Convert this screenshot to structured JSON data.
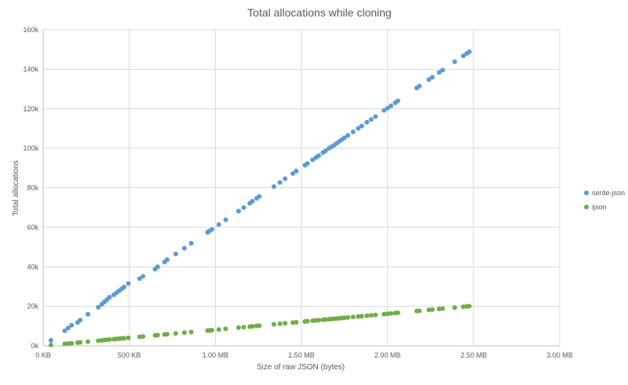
{
  "chart_data": {
    "type": "scatter",
    "title": "Total allocations while cloning",
    "xlabel": "Size of raw JSON (bytes)",
    "ylabel": "Total allocations",
    "xlim": [
      0,
      3000000
    ],
    "ylim": [
      0,
      160000
    ],
    "x_ticks": [
      {
        "value": 0,
        "label": "0 KB"
      },
      {
        "value": 500000,
        "label": "500 KB"
      },
      {
        "value": 1000000,
        "label": "1.00 MB"
      },
      {
        "value": 1500000,
        "label": "1.50 MB"
      },
      {
        "value": 2000000,
        "label": "2.00 MB"
      },
      {
        "value": 2500000,
        "label": "2.50 MB"
      },
      {
        "value": 3000000,
        "label": "3.00 MB"
      }
    ],
    "y_ticks": [
      {
        "value": 0,
        "label": "0k"
      },
      {
        "value": 20000,
        "label": "20k"
      },
      {
        "value": 40000,
        "label": "40k"
      },
      {
        "value": 60000,
        "label": "60k"
      },
      {
        "value": 80000,
        "label": "80k"
      },
      {
        "value": 100000,
        "label": "100k"
      },
      {
        "value": 120000,
        "label": "120k"
      },
      {
        "value": 140000,
        "label": "140k"
      },
      {
        "value": 160000,
        "label": "160k"
      }
    ],
    "grid": true,
    "legend_position": "right",
    "x": [
      45000,
      125000,
      145000,
      165000,
      200000,
      215000,
      260000,
      320000,
      340000,
      355000,
      370000,
      385000,
      410000,
      425000,
      440000,
      455000,
      470000,
      495000,
      560000,
      580000,
      650000,
      665000,
      705000,
      720000,
      770000,
      820000,
      860000,
      955000,
      965000,
      980000,
      1020000,
      1060000,
      1135000,
      1165000,
      1200000,
      1215000,
      1240000,
      1255000,
      1340000,
      1375000,
      1405000,
      1450000,
      1470000,
      1520000,
      1535000,
      1565000,
      1585000,
      1600000,
      1625000,
      1640000,
      1660000,
      1675000,
      1690000,
      1705000,
      1720000,
      1735000,
      1750000,
      1770000,
      1800000,
      1830000,
      1850000,
      1880000,
      1905000,
      1930000,
      1980000,
      2000000,
      2020000,
      2045000,
      2060000,
      2170000,
      2185000,
      2240000,
      2260000,
      2300000,
      2320000,
      2390000,
      2440000,
      2460000,
      2475000
    ],
    "series": [
      {
        "name": "serde-json",
        "color": "#5b9bd5",
        "values": [
          2800,
          7600,
          9000,
          10400,
          11800,
          13000,
          16000,
          19500,
          21000,
          22200,
          23300,
          24600,
          25800,
          26800,
          27800,
          28800,
          29800,
          31500,
          34000,
          35200,
          38800,
          40000,
          42400,
          43600,
          46500,
          49400,
          51900,
          57400,
          58100,
          58900,
          61400,
          63800,
          68200,
          70000,
          72200,
          73200,
          74700,
          75600,
          80600,
          82700,
          84600,
          87200,
          88500,
          91400,
          92300,
          94200,
          95400,
          96300,
          97800,
          98700,
          100000,
          100800,
          101600,
          102600,
          103500,
          104400,
          105300,
          106500,
          108300,
          110100,
          111300,
          113200,
          114600,
          116100,
          119200,
          120300,
          121500,
          123100,
          124000,
          130500,
          131500,
          134800,
          136000,
          138400,
          139600,
          143800,
          146800,
          148000,
          148900
        ]
      },
      {
        "name": "ijson",
        "color": "#70ad47",
        "values": [
          400,
          1000,
          1150,
          1300,
          1600,
          1750,
          2100,
          2600,
          2800,
          2900,
          3050,
          3200,
          3350,
          3450,
          3600,
          3700,
          3800,
          4000,
          4550,
          4700,
          5250,
          5400,
          5700,
          5850,
          6250,
          6650,
          6950,
          7750,
          7800,
          7950,
          8250,
          8600,
          9200,
          9450,
          9700,
          9850,
          10050,
          10150,
          10850,
          11150,
          11400,
          11750,
          11900,
          12300,
          12450,
          12700,
          12850,
          12950,
          13150,
          13300,
          13450,
          13550,
          13700,
          13800,
          13950,
          14050,
          14200,
          14350,
          14600,
          14850,
          15000,
          15250,
          15450,
          15650,
          16050,
          16200,
          16400,
          16550,
          16700,
          17600,
          17700,
          18150,
          18300,
          18650,
          18800,
          19350,
          19750,
          19950,
          20050
        ]
      }
    ]
  }
}
